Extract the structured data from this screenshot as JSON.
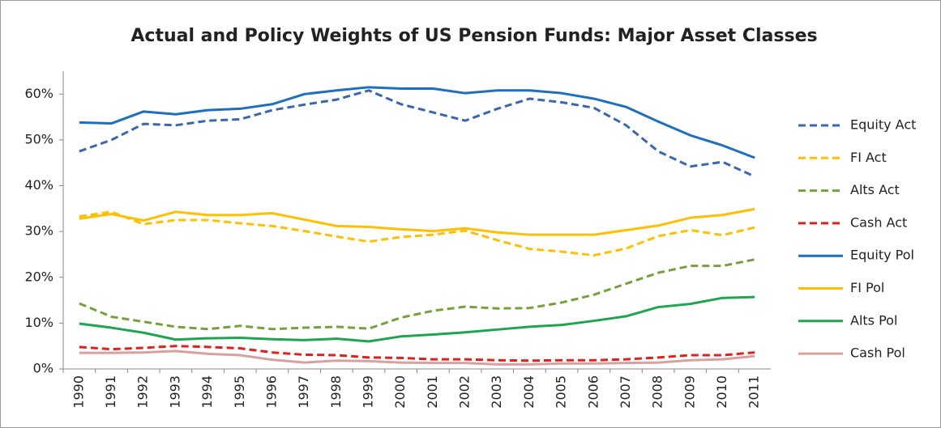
{
  "chart_data": {
    "type": "line",
    "title": "Actual and Policy Weights of US Pension Funds: Major Asset Classes",
    "categories": [
      "1990",
      "1991",
      "1992",
      "1993",
      "1994",
      "1995",
      "1996",
      "1997",
      "1998",
      "1999",
      "2000",
      "2001",
      "2002",
      "2003",
      "2004",
      "2005",
      "2006",
      "2007",
      "2008",
      "2009",
      "2010",
      "2011"
    ],
    "series": [
      {
        "name": "Equity Act",
        "color": "#3a66ad",
        "dash": true,
        "values": [
          47.5,
          50,
          53.5,
          53.2,
          54.2,
          54.5,
          56.5,
          57.7,
          58.8,
          60.8,
          57.8,
          56,
          54.2,
          56.8,
          59,
          58.2,
          57,
          53.2,
          47.5,
          44.2,
          45.2,
          42
        ]
      },
      {
        "name": "FI Act",
        "color": "#ffc000",
        "dash": true,
        "values": [
          33.3,
          34.3,
          31.6,
          32.5,
          32.5,
          31.8,
          31.2,
          30.1,
          28.9,
          27.8,
          28.8,
          29.3,
          30.2,
          28.1,
          26.2,
          25.6,
          24.8,
          26.3,
          29,
          30.3,
          29.2,
          30.9
        ]
      },
      {
        "name": "Alts Act",
        "color": "#77a03c",
        "dash": true,
        "values": [
          14.3,
          11.4,
          10.3,
          9.2,
          8.7,
          9.4,
          8.7,
          9.0,
          9.2,
          8.8,
          11.2,
          12.7,
          13.6,
          13.2,
          13.3,
          14.5,
          16.2,
          18.6,
          21,
          22.5,
          22.5,
          23.9
        ]
      },
      {
        "name": "Cash Act",
        "color": "#e0201c",
        "dash": true,
        "values": [
          4.8,
          4.3,
          4.6,
          5.0,
          4.8,
          4.5,
          3.6,
          3.1,
          3.0,
          2.5,
          2.4,
          2.1,
          2.1,
          1.9,
          1.8,
          1.9,
          1.9,
          2.1,
          2.5,
          3.0,
          3.0,
          3.6
        ]
      },
      {
        "name": "Equity Pol",
        "color": "#1f6fc0",
        "dash": false,
        "values": [
          53.8,
          53.6,
          56.2,
          55.6,
          56.5,
          56.8,
          57.8,
          60,
          60.8,
          61.5,
          61.2,
          61.2,
          60.2,
          60.8,
          60.8,
          60.2,
          59,
          57.2,
          54,
          51,
          48.8,
          46.1
        ]
      },
      {
        "name": "FI Pol",
        "color": "#ffc000",
        "dash": false,
        "values": [
          32.8,
          33.8,
          32.4,
          34.3,
          33.6,
          33.6,
          34,
          32.6,
          31.2,
          31,
          30.5,
          30.1,
          30.7,
          29.8,
          29.3,
          29.3,
          29.3,
          30.3,
          31.3,
          33,
          33.6,
          34.9
        ]
      },
      {
        "name": "Alts Pol",
        "color": "#1fa550",
        "dash": false,
        "values": [
          9.9,
          9.0,
          7.9,
          6.4,
          6.7,
          6.8,
          6.5,
          6.3,
          6.6,
          6.0,
          7.1,
          7.5,
          8.0,
          8.6,
          9.2,
          9.6,
          10.5,
          11.5,
          13.5,
          14.2,
          15.5,
          15.7
        ]
      },
      {
        "name": "Cash Pol",
        "color": "#d9a0a0",
        "dash": false,
        "values": [
          3.5,
          3.5,
          3.6,
          3.9,
          3.3,
          3.0,
          2.0,
          1.4,
          1.8,
          1.7,
          1.4,
          1.3,
          1.3,
          1.0,
          1.0,
          1.2,
          1.2,
          1.3,
          1.4,
          1.9,
          2.1,
          2.8
        ]
      }
    ],
    "ylim": [
      0,
      65
    ],
    "yticks": [
      {
        "value": 0,
        "label": "0%"
      },
      {
        "value": 10,
        "label": "10%"
      },
      {
        "value": 20,
        "label": "20%"
      },
      {
        "value": 30,
        "label": "30%"
      },
      {
        "value": 40,
        "label": "40%"
      },
      {
        "value": 50,
        "label": "50%"
      },
      {
        "value": 60,
        "label": "60%"
      }
    ],
    "grid": false,
    "legend": "right"
  }
}
